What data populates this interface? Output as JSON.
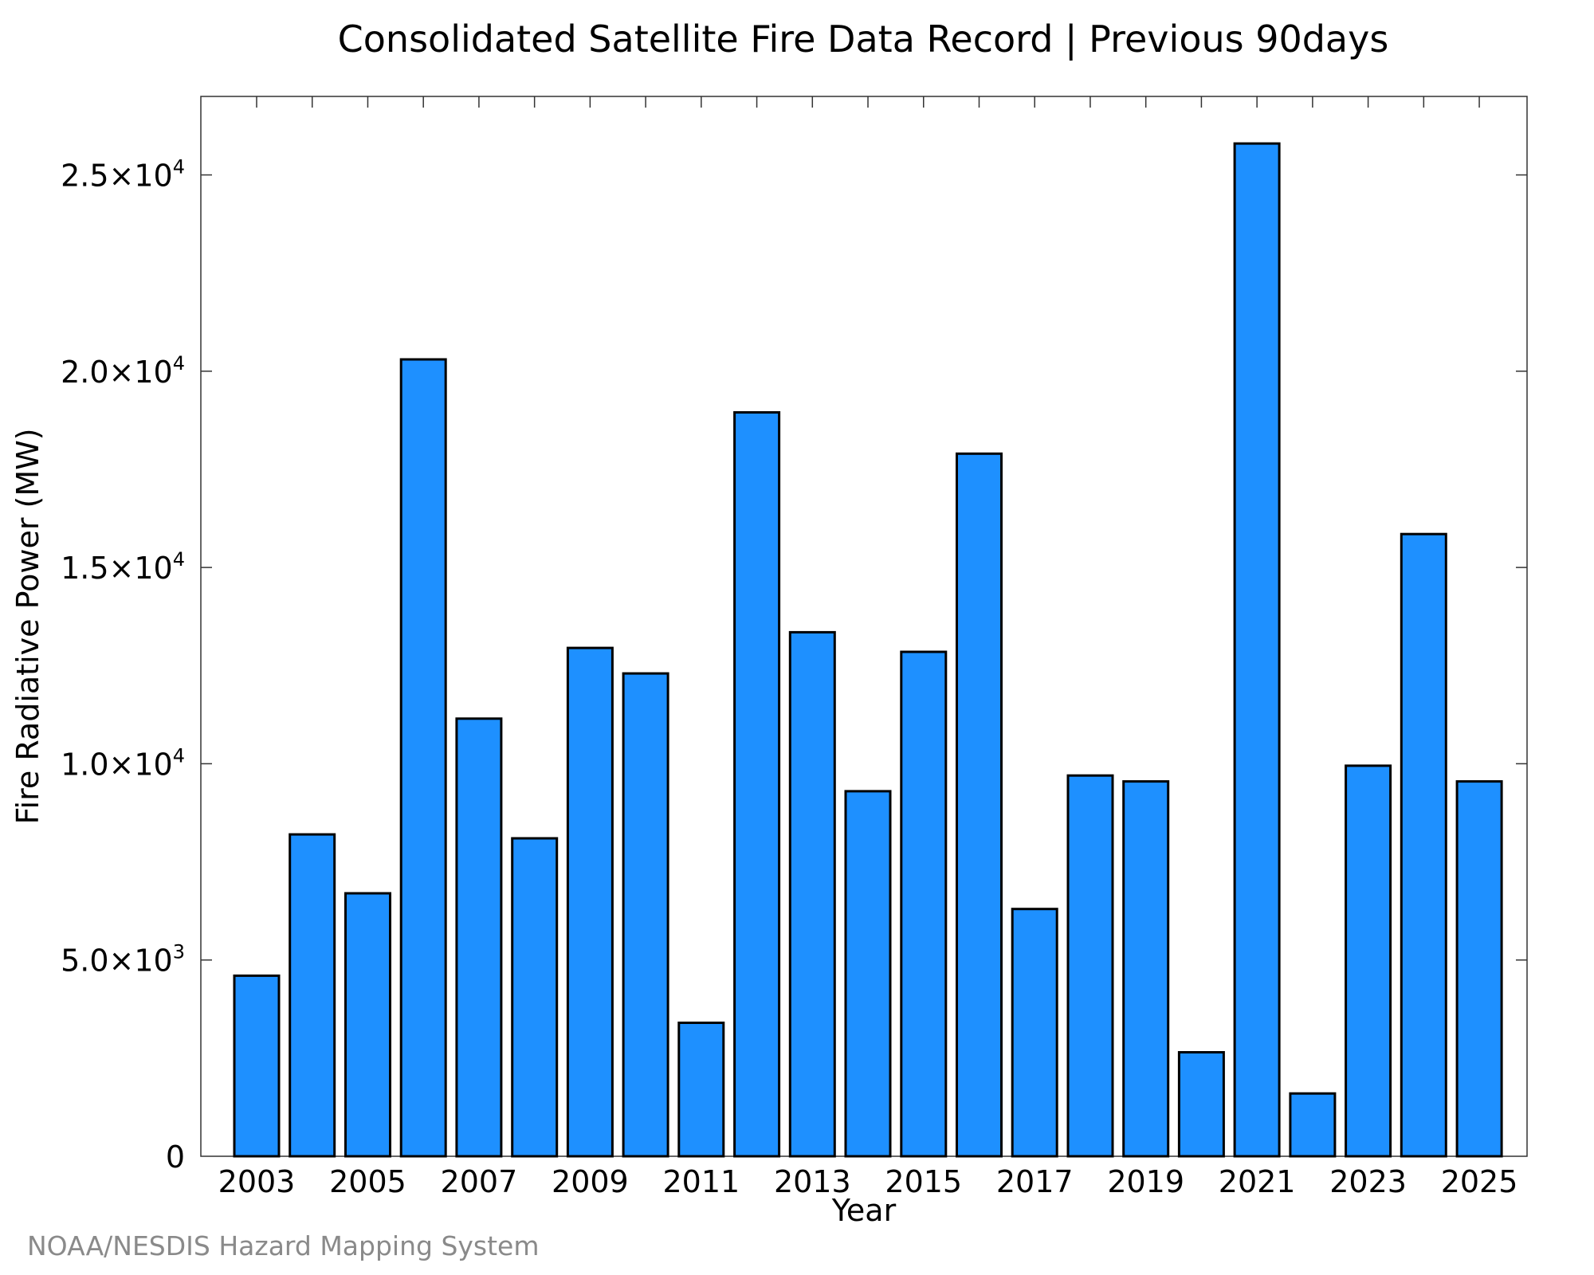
{
  "credit": "NOAA/NESDIS Hazard Mapping System",
  "colors": {
    "bar_fill": "#1e90ff",
    "bar_edge": "#000000",
    "credit_text": "#8a8a8a"
  },
  "chart_data": {
    "type": "bar",
    "title": "Consolidated Satellite Fire Data Record | Previous 90days",
    "xlabel": "Year",
    "ylabel": "Fire Radiative Power (MW)",
    "ylim": [
      0,
      27000
    ],
    "grid": false,
    "categories": [
      "2003",
      "2004",
      "2005",
      "2006",
      "2007",
      "2008",
      "2009",
      "2010",
      "2011",
      "2012",
      "2013",
      "2014",
      "2015",
      "2016",
      "2017",
      "2018",
      "2019",
      "2020",
      "2021",
      "2022",
      "2023",
      "2024",
      "2025"
    ],
    "values": [
      4600,
      8200,
      6700,
      20300,
      11150,
      8100,
      12950,
      12300,
      3400,
      18950,
      13350,
      9300,
      12850,
      17900,
      6300,
      9700,
      9550,
      2650,
      25800,
      1600,
      9950,
      15850,
      9550
    ],
    "x_tick_labels": [
      "2003",
      "2005",
      "2007",
      "2009",
      "2011",
      "2013",
      "2015",
      "2017",
      "2019",
      "2021",
      "2023",
      "2025"
    ],
    "y_ticks": [
      {
        "value": 0,
        "mantissa": "0",
        "exponent": ""
      },
      {
        "value": 5000,
        "mantissa": "5.0×10",
        "exponent": "3"
      },
      {
        "value": 10000,
        "mantissa": "1.0×10",
        "exponent": "4"
      },
      {
        "value": 15000,
        "mantissa": "1.5×10",
        "exponent": "4"
      },
      {
        "value": 20000,
        "mantissa": "2.0×10",
        "exponent": "4"
      },
      {
        "value": 25000,
        "mantissa": "2.5×10",
        "exponent": "4"
      }
    ]
  }
}
